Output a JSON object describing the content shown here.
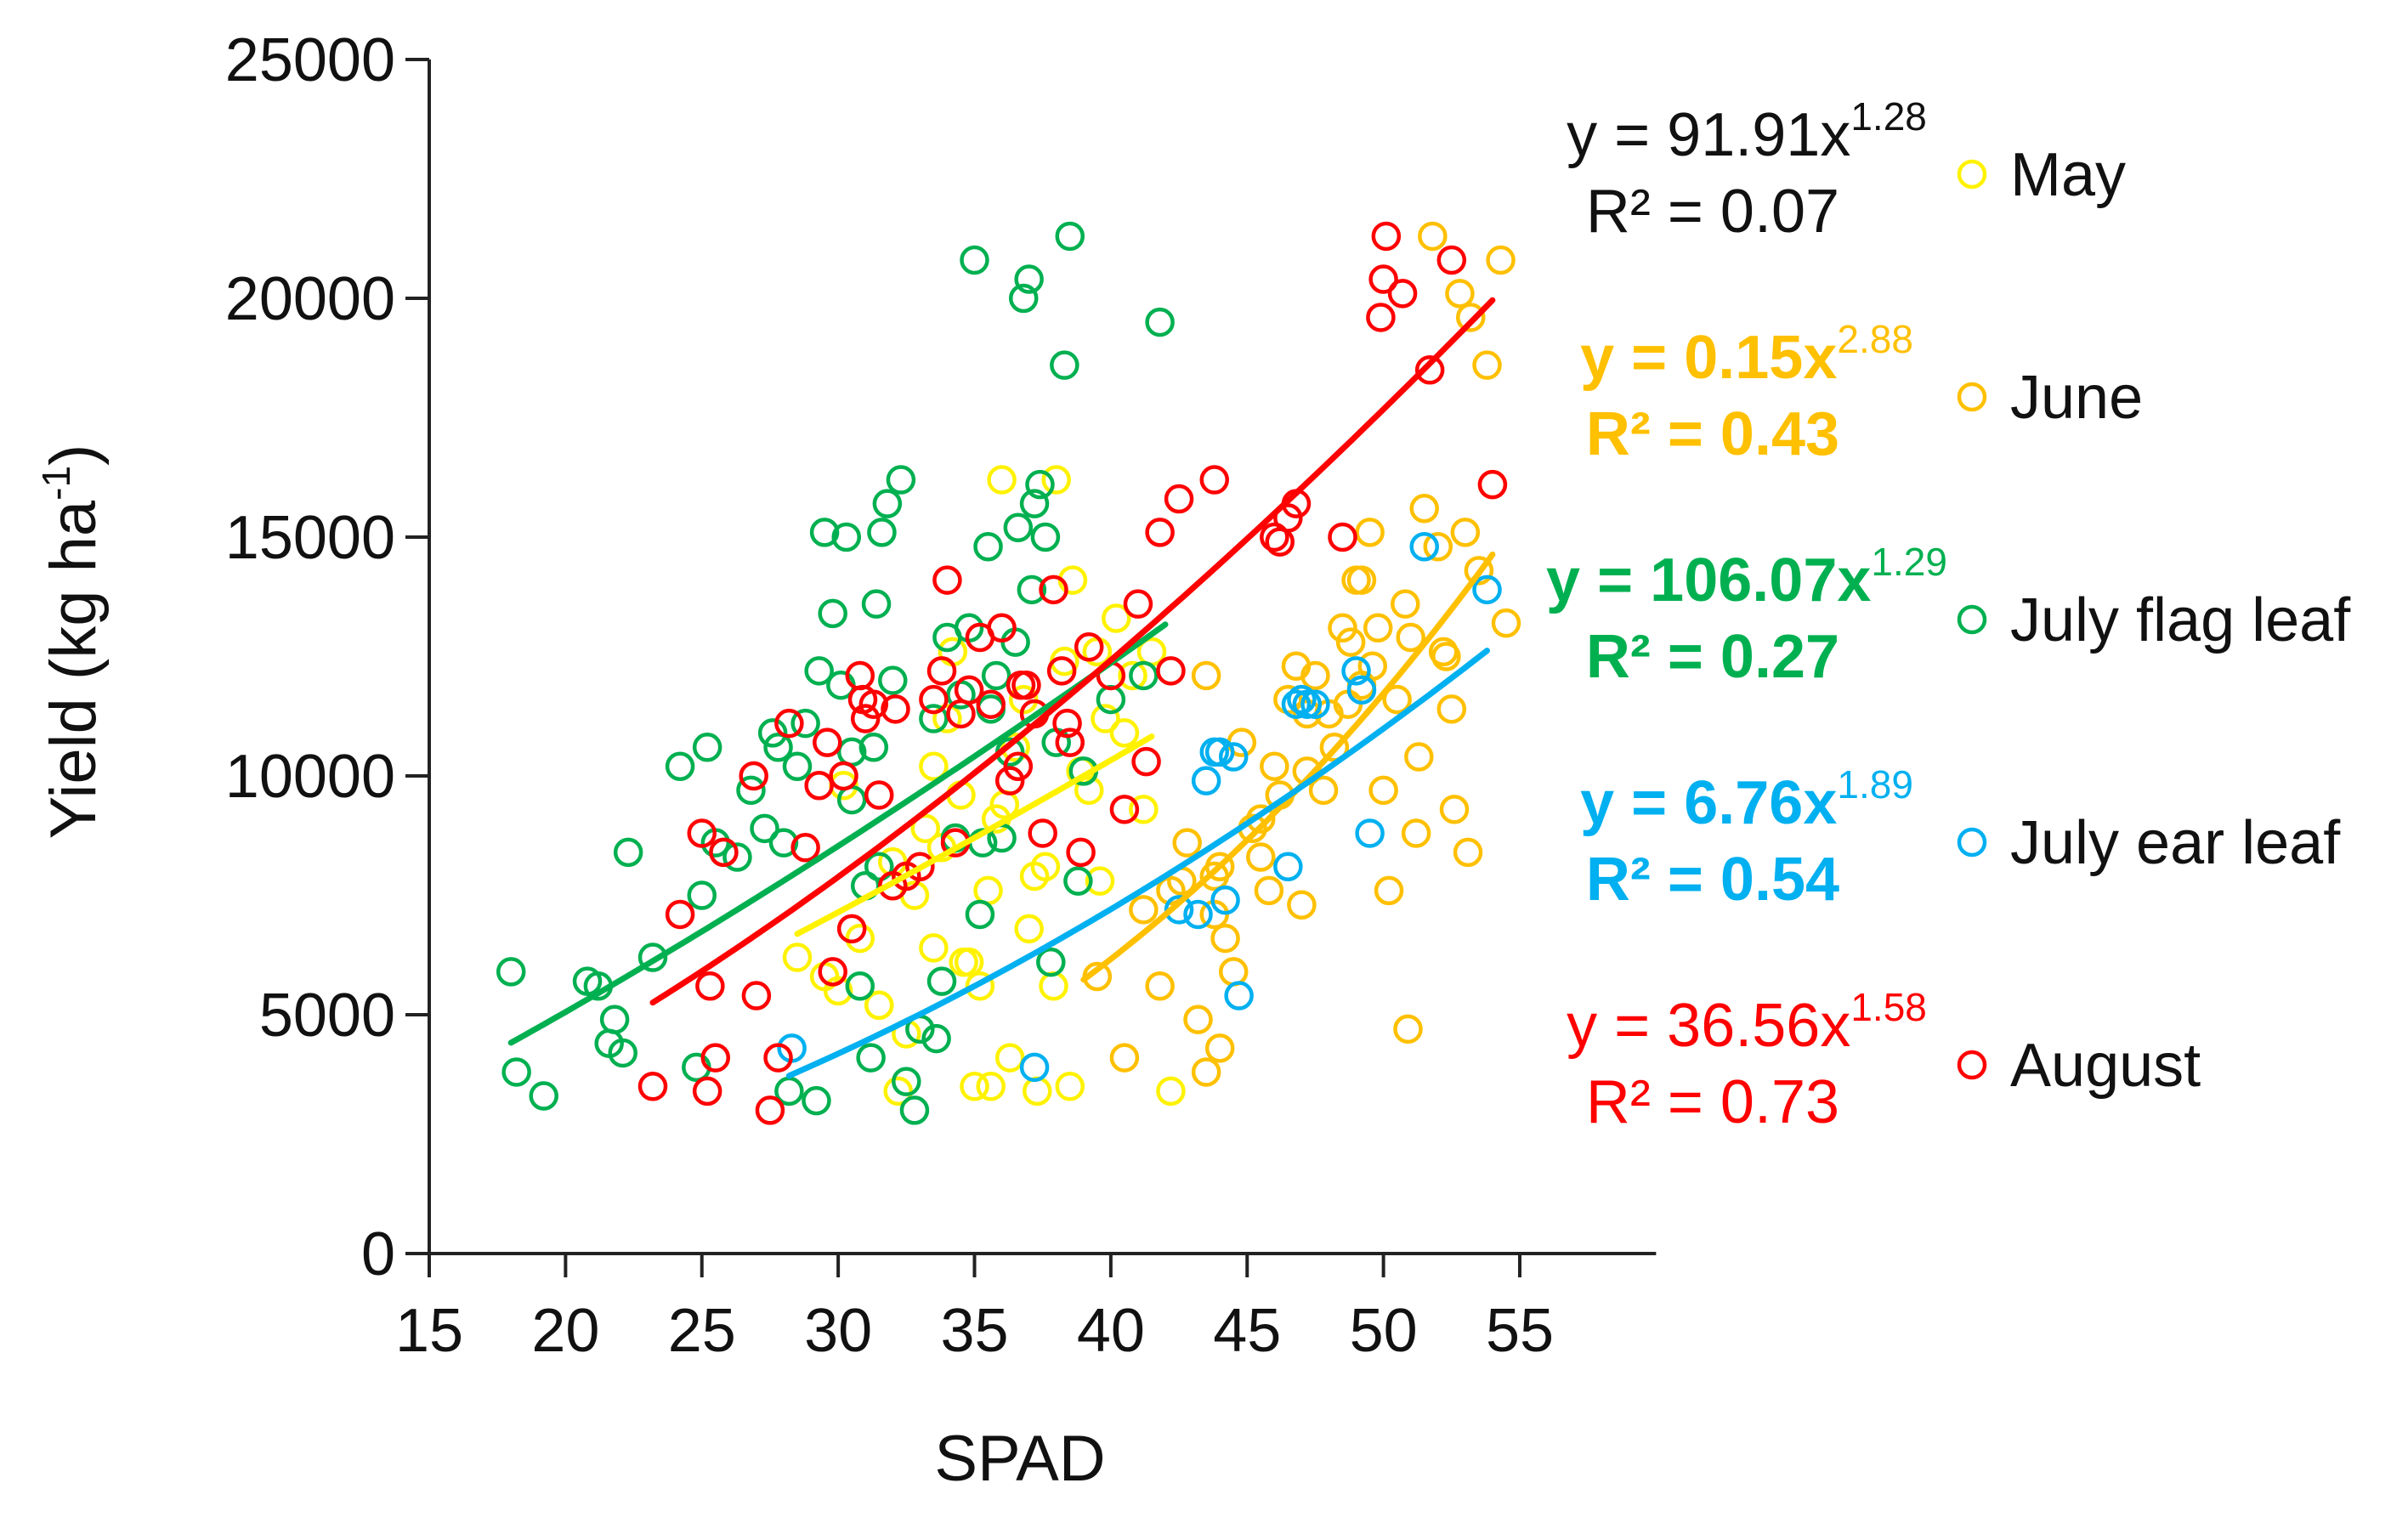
{
  "chart_data": {
    "type": "scatter",
    "title": "",
    "xlabel": "SPAD",
    "ylabel": "Yield (kg ha-1)",
    "ylabel_parts": {
      "base": "Yield (kg ha",
      "sup": "-1",
      "close": ")"
    },
    "xlim": [
      15,
      60
    ],
    "ylim": [
      0,
      25000
    ],
    "xticks": [
      15,
      20,
      25,
      30,
      35,
      40,
      45,
      50,
      55
    ],
    "yticks": [
      0,
      5000,
      10000,
      15000,
      20000,
      25000
    ],
    "grid": false,
    "legend_position": "right",
    "series": [
      {
        "name": "May",
        "color": "#FFF200",
        "fit": {
          "a": 91.91,
          "b": 1.28,
          "r2": 0.07,
          "x_range": [
            28.5,
            41.5
          ],
          "coef_text": "y = 91.91x",
          "exp_text": "1.28",
          "r2_text": "R² = 0.07",
          "eq_color": "#111111",
          "bold": false
        },
        "points": [
          [
            28.5,
            6200
          ],
          [
            29.5,
            5800
          ],
          [
            30,
            5500
          ],
          [
            30.8,
            6600
          ],
          [
            31.5,
            5200
          ],
          [
            32,
            8200
          ],
          [
            32.5,
            4600
          ],
          [
            32.8,
            7500
          ],
          [
            33.2,
            8900
          ],
          [
            33.5,
            10200
          ],
          [
            34,
            11200
          ],
          [
            34.5,
            9600
          ],
          [
            34.8,
            6100
          ],
          [
            35,
            3500
          ],
          [
            35.2,
            5600
          ],
          [
            35.5,
            7600
          ],
          [
            35.8,
            9100
          ],
          [
            36,
            16200
          ],
          [
            36.3,
            4100
          ],
          [
            36.5,
            10600
          ],
          [
            37,
            6800
          ],
          [
            37.3,
            3400
          ],
          [
            37.6,
            8100
          ],
          [
            37.9,
            5600
          ],
          [
            38,
            16200
          ],
          [
            38.3,
            12400
          ],
          [
            38.6,
            14100
          ],
          [
            38.9,
            10100
          ],
          [
            39.2,
            9700
          ],
          [
            39.5,
            12600
          ],
          [
            39.8,
            11200
          ],
          [
            40.2,
            13300
          ],
          [
            40.5,
            10900
          ],
          [
            40.8,
            12100
          ],
          [
            41.2,
            9300
          ],
          [
            41.5,
            12600
          ],
          [
            42.2,
            3400
          ],
          [
            34.2,
            12600
          ],
          [
            33.8,
            8500
          ],
          [
            36.8,
            11600
          ],
          [
            35.6,
            3500
          ],
          [
            32.2,
            3400
          ],
          [
            31.5,
            5200
          ],
          [
            30.2,
            9800
          ],
          [
            37.2,
            7900
          ],
          [
            38.5,
            3500
          ],
          [
            39.6,
            7800
          ],
          [
            33.5,
            6400
          ],
          [
            34.6,
            6100
          ],
          [
            36.1,
            9400
          ]
        ]
      },
      {
        "name": "June",
        "color": "#FFC000",
        "fit": {
          "a": 0.15,
          "b": 2.88,
          "r2": 0.43,
          "x_range": [
            39,
            54
          ],
          "coef_text": "y = 0.15x",
          "exp_text": "2.88",
          "r2_text": "R² = 0.43",
          "eq_color": "#FFC000",
          "bold": true
        },
        "points": [
          [
            39.5,
            5800
          ],
          [
            40.5,
            4100
          ],
          [
            41.2,
            7200
          ],
          [
            41.8,
            5600
          ],
          [
            42.2,
            7600
          ],
          [
            42.8,
            8600
          ],
          [
            43.2,
            4900
          ],
          [
            43.5,
            12100
          ],
          [
            43.8,
            7100
          ],
          [
            44,
            8100
          ],
          [
            44.2,
            6600
          ],
          [
            44.5,
            5900
          ],
          [
            44.8,
            10700
          ],
          [
            45.2,
            8900
          ],
          [
            45.5,
            8300
          ],
          [
            45.8,
            7600
          ],
          [
            46.2,
            9600
          ],
          [
            46.5,
            11600
          ],
          [
            46.8,
            12300
          ],
          [
            47,
            7300
          ],
          [
            47.2,
            10100
          ],
          [
            47.5,
            12100
          ],
          [
            47.8,
            9700
          ],
          [
            48,
            11300
          ],
          [
            48.2,
            10600
          ],
          [
            48.5,
            13100
          ],
          [
            48.8,
            12800
          ],
          [
            49,
            14100
          ],
          [
            49.2,
            11900
          ],
          [
            49.5,
            15100
          ],
          [
            49.8,
            13100
          ],
          [
            50,
            9700
          ],
          [
            50.2,
            7600
          ],
          [
            50.5,
            11600
          ],
          [
            50.8,
            13600
          ],
          [
            51,
            12900
          ],
          [
            51.2,
            8800
          ],
          [
            51.5,
            15600
          ],
          [
            51.8,
            21300
          ],
          [
            52,
            14800
          ],
          [
            52.2,
            12600
          ],
          [
            52.5,
            11400
          ],
          [
            52.8,
            20100
          ],
          [
            53,
            15100
          ],
          [
            53.2,
            19600
          ],
          [
            53.5,
            14300
          ],
          [
            53.8,
            18600
          ],
          [
            54,
            16100
          ],
          [
            54.3,
            20800
          ],
          [
            54.5,
            13200
          ],
          [
            47.2,
            11300
          ],
          [
            43.8,
            7900
          ],
          [
            49.6,
            12300
          ],
          [
            52.6,
            9300
          ],
          [
            50.9,
            4700
          ],
          [
            53.1,
            8400
          ],
          [
            42.6,
            7800
          ],
          [
            45.5,
            9100
          ],
          [
            48.7,
            11500
          ],
          [
            51.3,
            10400
          ],
          [
            52.3,
            12500
          ],
          [
            49.2,
            14100
          ],
          [
            46,
            10200
          ],
          [
            44,
            4300
          ],
          [
            43.5,
            3800
          ]
        ]
      },
      {
        "name": "July flag leaf",
        "color": "#00B050",
        "fit": {
          "a": 106.07,
          "b": 1.29,
          "r2": 0.27,
          "x_range": [
            18,
            42
          ],
          "coef_text": "y = 106.07x",
          "exp_text": "1.29",
          "r2_text": "R² = 0.27",
          "eq_color": "#00B050",
          "bold": true
        },
        "points": [
          [
            18,
            5900
          ],
          [
            18.2,
            3800
          ],
          [
            19.2,
            3300
          ],
          [
            20.8,
            5700
          ],
          [
            21.2,
            5600
          ],
          [
            21.6,
            4400
          ],
          [
            21.8,
            4900
          ],
          [
            22.1,
            4200
          ],
          [
            22.3,
            8400
          ],
          [
            23.2,
            6200
          ],
          [
            24.2,
            10200
          ],
          [
            24.8,
            3900
          ],
          [
            25,
            7500
          ],
          [
            25.2,
            10600
          ],
          [
            25.5,
            8600
          ],
          [
            25.8,
            8400
          ],
          [
            26.3,
            8300
          ],
          [
            26.8,
            9700
          ],
          [
            27.3,
            8900
          ],
          [
            27.6,
            10900
          ],
          [
            27.8,
            10600
          ],
          [
            28,
            8600
          ],
          [
            28.2,
            3400
          ],
          [
            28.5,
            10200
          ],
          [
            28.8,
            11100
          ],
          [
            29.3,
            12200
          ],
          [
            29.5,
            15100
          ],
          [
            29.8,
            13400
          ],
          [
            30.1,
            11900
          ],
          [
            30.3,
            15000
          ],
          [
            30.5,
            9500
          ],
          [
            30.8,
            5600
          ],
          [
            31,
            7700
          ],
          [
            31.2,
            4100
          ],
          [
            31.3,
            10600
          ],
          [
            31.5,
            8100
          ],
          [
            31.6,
            15100
          ],
          [
            31.8,
            15700
          ],
          [
            32,
            12000
          ],
          [
            32.3,
            16200
          ],
          [
            32.5,
            3600
          ],
          [
            32.8,
            3000
          ],
          [
            33,
            4700
          ],
          [
            33.5,
            11200
          ],
          [
            33.8,
            5700
          ],
          [
            34,
            12900
          ],
          [
            34.3,
            8700
          ],
          [
            34.5,
            11700
          ],
          [
            34.8,
            13100
          ],
          [
            35,
            20800
          ],
          [
            35.2,
            7100
          ],
          [
            35.5,
            14800
          ],
          [
            35.8,
            12100
          ],
          [
            36,
            8700
          ],
          [
            36.3,
            10500
          ],
          [
            36.6,
            15200
          ],
          [
            36.8,
            20000
          ],
          [
            37,
            20400
          ],
          [
            37.2,
            15700
          ],
          [
            37.4,
            16100
          ],
          [
            37.6,
            15000
          ],
          [
            37.8,
            6100
          ],
          [
            38,
            10700
          ],
          [
            38.3,
            18600
          ],
          [
            38.5,
            21300
          ],
          [
            38.8,
            7800
          ],
          [
            39,
            10100
          ],
          [
            40,
            11600
          ],
          [
            41.2,
            12100
          ],
          [
            41.8,
            19500
          ],
          [
            35.3,
            8600
          ],
          [
            35.6,
            11400
          ],
          [
            37.1,
            13900
          ],
          [
            36.5,
            12800
          ],
          [
            31.4,
            13600
          ],
          [
            30.5,
            10500
          ],
          [
            29.2,
            3200
          ],
          [
            33.6,
            4500
          ]
        ]
      },
      {
        "name": "July ear leaf",
        "color": "#00B0F0",
        "fit": {
          "a": 6.76,
          "b": 1.89,
          "r2": 0.54,
          "x_range": [
            28.2,
            53.8
          ],
          "coef_text": "y = 6.76x",
          "exp_text": "1.89",
          "r2_text": "R² = 0.54",
          "eq_color": "#00B0F0",
          "bold": true
        },
        "points": [
          [
            28.3,
            4300
          ],
          [
            37.2,
            3900
          ],
          [
            42.5,
            7200
          ],
          [
            43.2,
            7100
          ],
          [
            43.5,
            9900
          ],
          [
            44,
            10500
          ],
          [
            44.2,
            7400
          ],
          [
            44.5,
            10400
          ],
          [
            44.7,
            5400
          ],
          [
            46.5,
            8100
          ],
          [
            46.8,
            11500
          ],
          [
            47,
            11600
          ],
          [
            47.2,
            11500
          ],
          [
            49,
            12200
          ],
          [
            49.2,
            11800
          ],
          [
            49.5,
            8800
          ],
          [
            51.5,
            14800
          ],
          [
            53.8,
            13900
          ],
          [
            47.5,
            11500
          ],
          [
            43.8,
            10500
          ]
        ]
      },
      {
        "name": "August",
        "color": "#FF0000",
        "fit": {
          "a": 36.56,
          "b": 1.58,
          "r2": 0.73,
          "x_range": [
            23.2,
            54
          ],
          "coef_text": "y = 36.56x",
          "exp_text": "1.58",
          "r2_text": "R² = 0.73",
          "eq_color": "#FF0000",
          "bold": false
        },
        "points": [
          [
            23.2,
            3500
          ],
          [
            24.2,
            7100
          ],
          [
            25,
            8800
          ],
          [
            25.2,
            3400
          ],
          [
            25.3,
            5600
          ],
          [
            25.5,
            4100
          ],
          [
            25.8,
            8400
          ],
          [
            26.9,
            10000
          ],
          [
            27,
            5400
          ],
          [
            27.5,
            3000
          ],
          [
            27.8,
            4100
          ],
          [
            28.2,
            11100
          ],
          [
            28.8,
            8500
          ],
          [
            29.3,
            9800
          ],
          [
            29.8,
            5900
          ],
          [
            30.2,
            10000
          ],
          [
            30.5,
            6800
          ],
          [
            30.8,
            12100
          ],
          [
            31,
            11200
          ],
          [
            31.3,
            11500
          ],
          [
            31.5,
            9600
          ],
          [
            32,
            7700
          ],
          [
            32.5,
            7900
          ],
          [
            33,
            8100
          ],
          [
            33.5,
            11600
          ],
          [
            33.8,
            12200
          ],
          [
            34,
            14100
          ],
          [
            34.3,
            8600
          ],
          [
            34.5,
            11300
          ],
          [
            34.8,
            11800
          ],
          [
            35.2,
            12900
          ],
          [
            35.6,
            11500
          ],
          [
            36,
            13100
          ],
          [
            36.3,
            9900
          ],
          [
            36.6,
            10200
          ],
          [
            36.9,
            11900
          ],
          [
            37.2,
            11300
          ],
          [
            37.5,
            8800
          ],
          [
            37.9,
            13900
          ],
          [
            38.2,
            12200
          ],
          [
            38.5,
            10700
          ],
          [
            38.9,
            8400
          ],
          [
            39.2,
            12700
          ],
          [
            40,
            12100
          ],
          [
            40.5,
            9300
          ],
          [
            41,
            13600
          ],
          [
            41.3,
            10300
          ],
          [
            41.8,
            15100
          ],
          [
            42.2,
            12200
          ],
          [
            42.5,
            15800
          ],
          [
            43.8,
            16200
          ],
          [
            46,
            15000
          ],
          [
            46.2,
            14900
          ],
          [
            46.5,
            15400
          ],
          [
            46.8,
            15700
          ],
          [
            48.5,
            15000
          ],
          [
            49.9,
            19600
          ],
          [
            50,
            20400
          ],
          [
            50.1,
            21300
          ],
          [
            50.7,
            20100
          ],
          [
            51.7,
            18500
          ],
          [
            52.5,
            20800
          ],
          [
            54,
            16100
          ],
          [
            30.9,
            11600
          ],
          [
            32.1,
            11400
          ],
          [
            36.7,
            11900
          ],
          [
            38.4,
            11100
          ],
          [
            29.6,
            10700
          ]
        ]
      }
    ]
  }
}
